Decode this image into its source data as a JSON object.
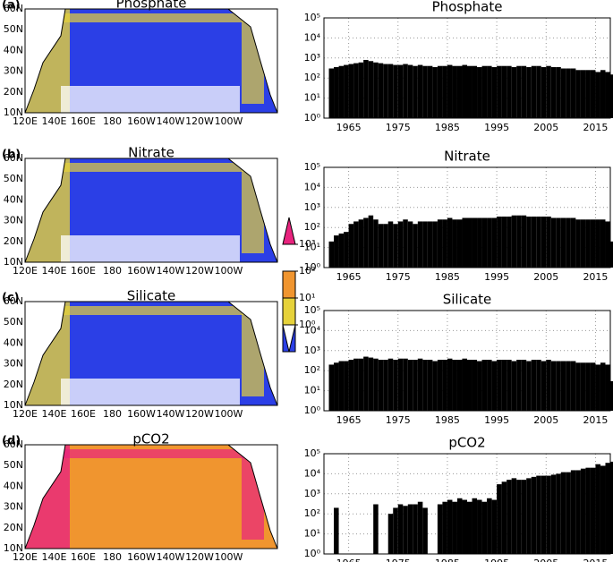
{
  "maps": [
    {
      "label": "(a)",
      "title": "Phosphate",
      "color": "#2b3fe6",
      "accent": "#e6d23a"
    },
    {
      "label": "(b)",
      "title": "Nitrate",
      "color": "#2b3fe6",
      "accent": "#e6d23a"
    },
    {
      "label": "(c)",
      "title": "Silicate",
      "color": "#2b3fe6",
      "accent": "#e6d23a"
    },
    {
      "label": "(d)",
      "title": "pCO2",
      "color": "#f0952f",
      "accent": "#e8237e"
    }
  ],
  "map_axes": {
    "xticklabels": [
      "120E",
      "140E",
      "160E",
      "180",
      "160W",
      "140W",
      "120W",
      "100W"
    ],
    "yticklabels": [
      "10N",
      "20N",
      "30N",
      "40N",
      "50N",
      "60N"
    ]
  },
  "colorbar": {
    "colors": [
      "#ffffff",
      "#2b3fe6",
      "#e6d23a",
      "#f0952f",
      "#e8237e"
    ],
    "ticks": [
      {
        "value": 1,
        "label": "10⁰"
      },
      {
        "value": 10,
        "label": "10¹"
      },
      {
        "value": 100,
        "label": "10²"
      },
      {
        "value": 1000,
        "label": "10³"
      }
    ]
  },
  "chart_data": [
    {
      "type": "bar",
      "title": "Phosphate",
      "color": "#000000",
      "log": true,
      "grid": true,
      "x": [
        1961,
        1962,
        1963,
        1964,
        1965,
        1966,
        1967,
        1968,
        1969,
        1970,
        1971,
        1972,
        1973,
        1974,
        1975,
        1976,
        1977,
        1978,
        1979,
        1980,
        1981,
        1982,
        1983,
        1984,
        1985,
        1986,
        1987,
        1988,
        1989,
        1990,
        1991,
        1992,
        1993,
        1994,
        1995,
        1996,
        1997,
        1998,
        1999,
        2000,
        2001,
        2002,
        2003,
        2004,
        2005,
        2006,
        2007,
        2008,
        2009,
        2010,
        2011,
        2012,
        2013,
        2014,
        2015,
        2016,
        2017,
        2018
      ],
      "values": [
        300,
        350,
        400,
        450,
        500,
        550,
        600,
        800,
        700,
        600,
        550,
        500,
        500,
        450,
        450,
        500,
        450,
        400,
        450,
        400,
        400,
        350,
        400,
        400,
        450,
        400,
        400,
        450,
        400,
        400,
        350,
        400,
        400,
        350,
        400,
        400,
        400,
        350,
        400,
        400,
        350,
        400,
        400,
        350,
        400,
        350,
        350,
        300,
        300,
        300,
        250,
        250,
        250,
        250,
        200,
        250,
        200,
        150
      ],
      "xlim": [
        1960,
        2018
      ],
      "xticks": [
        1965,
        1975,
        1985,
        1995,
        2005,
        2015
      ],
      "ylim": [
        1,
        100000
      ],
      "yticks": [
        {
          "value": 1,
          "label": "10⁰"
        },
        {
          "value": 10,
          "label": "10¹"
        },
        {
          "value": 100,
          "label": "10²"
        },
        {
          "value": 1000,
          "label": "10³"
        },
        {
          "value": 10000,
          "label": "10⁴"
        },
        {
          "value": 100000,
          "label": "10⁵"
        }
      ]
    },
    {
      "type": "bar",
      "title": "Nitrate",
      "color": "#000000",
      "log": true,
      "grid": true,
      "x": [
        1961,
        1962,
        1963,
        1964,
        1965,
        1966,
        1967,
        1968,
        1969,
        1970,
        1971,
        1972,
        1973,
        1974,
        1975,
        1976,
        1977,
        1978,
        1979,
        1980,
        1981,
        1982,
        1983,
        1984,
        1985,
        1986,
        1987,
        1988,
        1989,
        1990,
        1991,
        1992,
        1993,
        1994,
        1995,
        1996,
        1997,
        1998,
        1999,
        2000,
        2001,
        2002,
        2003,
        2004,
        2005,
        2006,
        2007,
        2008,
        2009,
        2010,
        2011,
        2012,
        2013,
        2014,
        2015,
        2016,
        2017,
        2018
      ],
      "values": [
        20,
        40,
        50,
        60,
        150,
        200,
        250,
        300,
        400,
        250,
        150,
        150,
        200,
        150,
        200,
        250,
        200,
        150,
        200,
        200,
        200,
        200,
        250,
        250,
        300,
        250,
        250,
        300,
        300,
        300,
        300,
        300,
        300,
        300,
        350,
        350,
        350,
        400,
        400,
        400,
        350,
        350,
        350,
        350,
        350,
        300,
        300,
        300,
        300,
        300,
        250,
        250,
        250,
        250,
        250,
        250,
        200,
        20
      ],
      "xlim": [
        1960,
        2018
      ],
      "xticks": [
        1965,
        1975,
        1985,
        1995,
        2005,
        2015
      ],
      "ylim": [
        1,
        100000
      ],
      "yticks": [
        {
          "value": 1,
          "label": "10⁰"
        },
        {
          "value": 10,
          "label": "10¹"
        },
        {
          "value": 100,
          "label": "10²"
        },
        {
          "value": 1000,
          "label": "10³"
        },
        {
          "value": 10000,
          "label": "10⁴"
        },
        {
          "value": 100000,
          "label": "10⁵"
        }
      ]
    },
    {
      "type": "bar",
      "title": "Silicate",
      "color": "#000000",
      "log": true,
      "grid": true,
      "x": [
        1961,
        1962,
        1963,
        1964,
        1965,
        1966,
        1967,
        1968,
        1969,
        1970,
        1971,
        1972,
        1973,
        1974,
        1975,
        1976,
        1977,
        1978,
        1979,
        1980,
        1981,
        1982,
        1983,
        1984,
        1985,
        1986,
        1987,
        1988,
        1989,
        1990,
        1991,
        1992,
        1993,
        1994,
        1995,
        1996,
        1997,
        1998,
        1999,
        2000,
        2001,
        2002,
        2003,
        2004,
        2005,
        2006,
        2007,
        2008,
        2009,
        2010,
        2011,
        2012,
        2013,
        2014,
        2015,
        2016,
        2017,
        2018
      ],
      "values": [
        200,
        250,
        300,
        300,
        350,
        400,
        400,
        500,
        450,
        400,
        350,
        350,
        400,
        350,
        400,
        400,
        350,
        350,
        400,
        350,
        350,
        300,
        350,
        350,
        400,
        350,
        350,
        400,
        350,
        350,
        300,
        350,
        350,
        300,
        350,
        350,
        350,
        300,
        350,
        350,
        300,
        350,
        350,
        300,
        350,
        300,
        300,
        300,
        300,
        300,
        250,
        250,
        250,
        250,
        200,
        250,
        200,
        30
      ],
      "xlim": [
        1960,
        2018
      ],
      "xticks": [
        1965,
        1975,
        1985,
        1995,
        2005,
        2015
      ],
      "ylim": [
        1,
        100000
      ],
      "yticks": [
        {
          "value": 1,
          "label": "10⁰"
        },
        {
          "value": 10,
          "label": "10¹"
        },
        {
          "value": 100,
          "label": "10²"
        },
        {
          "value": 1000,
          "label": "10³"
        },
        {
          "value": 10000,
          "label": "10⁴"
        },
        {
          "value": 100000,
          "label": "10⁵"
        }
      ]
    },
    {
      "type": "bar",
      "title": "pCO2",
      "color": "#000000",
      "log": true,
      "grid": true,
      "x": [
        1961,
        1962,
        1963,
        1964,
        1965,
        1966,
        1967,
        1968,
        1969,
        1970,
        1971,
        1972,
        1973,
        1974,
        1975,
        1976,
        1977,
        1978,
        1979,
        1980,
        1981,
        1982,
        1983,
        1984,
        1985,
        1986,
        1987,
        1988,
        1989,
        1990,
        1991,
        1992,
        1993,
        1994,
        1995,
        1996,
        1997,
        1998,
        1999,
        2000,
        2001,
        2002,
        2003,
        2004,
        2005,
        2006,
        2007,
        2008,
        2009,
        2010,
        2011,
        2012,
        2013,
        2014,
        2015,
        2016,
        2017,
        2018
      ],
      "values": [
        null,
        200,
        null,
        null,
        null,
        null,
        null,
        null,
        null,
        300,
        null,
        null,
        100,
        200,
        300,
        250,
        300,
        300,
        400,
        200,
        null,
        null,
        300,
        400,
        500,
        400,
        600,
        500,
        400,
        600,
        500,
        400,
        600,
        500,
        3000,
        4000,
        5000,
        6000,
        5000,
        5000,
        6000,
        7000,
        8000,
        8000,
        8000,
        9000,
        10000,
        12000,
        12000,
        15000,
        15000,
        18000,
        20000,
        20000,
        30000,
        25000,
        35000,
        40000
      ],
      "xlim": [
        1960,
        2018
      ],
      "xticks": [
        1965,
        1975,
        1985,
        1995,
        2005,
        2015
      ],
      "ylim": [
        1,
        100000
      ],
      "yticks": [
        {
          "value": 1,
          "label": "10⁰"
        },
        {
          "value": 10,
          "label": "10¹"
        },
        {
          "value": 100,
          "label": "10²"
        },
        {
          "value": 1000,
          "label": "10³"
        },
        {
          "value": 10000,
          "label": "10⁴"
        },
        {
          "value": 100000,
          "label": "10⁵"
        }
      ]
    }
  ]
}
